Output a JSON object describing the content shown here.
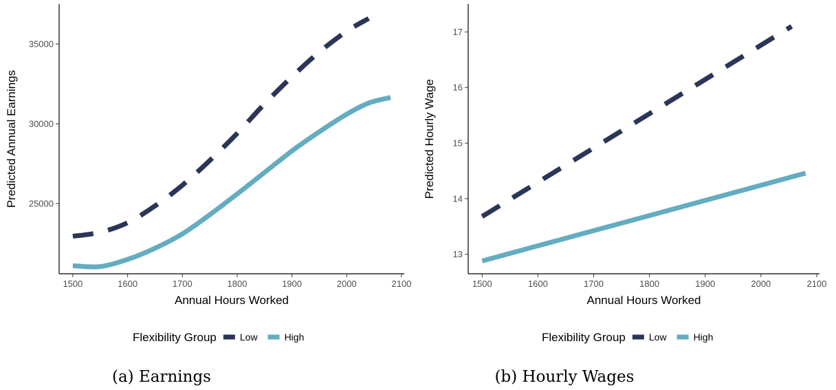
{
  "panels": [
    {
      "caption": "(a) Earnings",
      "legend": {
        "title": "Flexibility Group",
        "items": [
          "Low",
          "High"
        ]
      },
      "chart_data": {
        "type": "line",
        "xlabel": "Annual Hours Worked",
        "ylabel": "Predicted Annual Earnings",
        "xlim": [
          1475,
          2105
        ],
        "ylim": [
          20600,
          37500
        ],
        "xticks": [
          1500,
          1600,
          1700,
          1800,
          1900,
          2000,
          2100
        ],
        "yticks": [
          25000,
          30000,
          35000
        ],
        "x": [
          1500,
          1550,
          1600,
          1650,
          1700,
          1750,
          1800,
          1850,
          1900,
          1950,
          2000,
          2040,
          2080
        ],
        "series": [
          {
            "name": "Low",
            "style": "dashed",
            "color": "#2b3558",
            "x": [
              1500,
              1550,
              1600,
              1650,
              1700,
              1750,
              1800,
              1850,
              1900,
              1950,
              2000,
              2040
            ],
            "values": [
              22950,
              23200,
              23800,
              24850,
              26150,
              27700,
              29400,
              31250,
              32950,
              34500,
              35800,
              36600
            ]
          },
          {
            "name": "High",
            "style": "solid",
            "color": "#64acc0",
            "x": [
              1500,
              1550,
              1600,
              1650,
              1700,
              1750,
              1800,
              1850,
              1900,
              1950,
              2000,
              2040,
              2080
            ],
            "values": [
              21100,
              21050,
              21500,
              22200,
              23100,
              24300,
              25600,
              26950,
              28300,
              29500,
              30600,
              31300,
              31650
            ]
          }
        ],
        "grid": false,
        "legend_position": "bottom"
      }
    },
    {
      "caption": "(b) Hourly Wages",
      "legend": {
        "title": "Flexibility Group",
        "items": [
          "Low",
          "High"
        ]
      },
      "chart_data": {
        "type": "line",
        "xlabel": "Annual Hours Worked",
        "ylabel": "Predicted Hourly Wage",
        "xlim": [
          1475,
          2105
        ],
        "ylim": [
          12.65,
          17.5
        ],
        "xticks": [
          1500,
          1600,
          1700,
          1800,
          1900,
          2000,
          2100
        ],
        "yticks": [
          13,
          14,
          15,
          16,
          17
        ],
        "series": [
          {
            "name": "Low",
            "style": "dashed",
            "color": "#2b3558",
            "x": [
              1500,
              2055
            ],
            "values": [
              13.68,
              17.1
            ]
          },
          {
            "name": "High",
            "style": "solid",
            "color": "#64acc0",
            "x": [
              1500,
              2080
            ],
            "values": [
              12.88,
              14.46
            ]
          }
        ],
        "grid": false,
        "legend_position": "bottom"
      }
    }
  ]
}
